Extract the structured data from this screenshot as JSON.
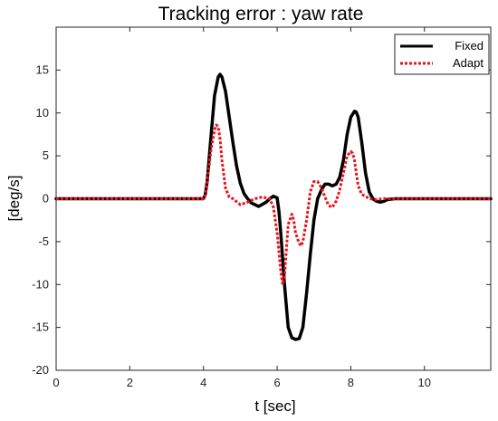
{
  "chart_data": {
    "type": "line",
    "title": "Tracking error : yaw rate",
    "xlabel": "t [sec]",
    "ylabel": "[deg/s]",
    "xlim": [
      0,
      11.8
    ],
    "ylim": [
      -20,
      20
    ],
    "xticks": [
      0,
      2,
      4,
      6,
      8,
      10
    ],
    "yticks": [
      -20,
      -15,
      -10,
      -5,
      0,
      5,
      10,
      15
    ],
    "grid": false,
    "legend_position": "top-right",
    "series": [
      {
        "name": "Fixed",
        "color": "#000000",
        "style": "solid",
        "x": [
          0,
          3.9,
          4.0,
          4.05,
          4.1,
          4.2,
          4.3,
          4.4,
          4.45,
          4.5,
          4.6,
          4.7,
          4.8,
          4.9,
          5.0,
          5.1,
          5.2,
          5.3,
          5.5,
          5.7,
          5.8,
          5.9,
          6.0,
          6.05,
          6.1,
          6.2,
          6.3,
          6.4,
          6.5,
          6.6,
          6.7,
          6.8,
          6.9,
          7.0,
          7.1,
          7.2,
          7.3,
          7.4,
          7.5,
          7.6,
          7.7,
          7.8,
          7.9,
          8.0,
          8.1,
          8.15,
          8.2,
          8.3,
          8.4,
          8.5,
          8.6,
          8.7,
          8.8,
          8.9,
          9.0,
          9.2,
          11.8
        ],
        "y": [
          0,
          0,
          0,
          0.5,
          2,
          7,
          12,
          14.2,
          14.5,
          14.2,
          12.5,
          9.5,
          6.5,
          3.8,
          1.8,
          0.6,
          0,
          -0.5,
          -0.9,
          -0.4,
          0,
          0.3,
          0.1,
          -1.5,
          -4,
          -10,
          -15,
          -16.2,
          -16.4,
          -16.3,
          -15,
          -11,
          -6.5,
          -2.5,
          0,
          1,
          1.7,
          1.7,
          1.5,
          1.7,
          2.5,
          4.5,
          7.5,
          9.5,
          10.2,
          10.1,
          9.5,
          6.5,
          3,
          0.8,
          0,
          -0.3,
          -0.4,
          -0.3,
          -0.1,
          0,
          0
        ]
      },
      {
        "name": "Adapt",
        "color": "#e8141e",
        "style": "dotted",
        "x": [
          0,
          3.9,
          4.0,
          4.05,
          4.1,
          4.2,
          4.3,
          4.35,
          4.4,
          4.45,
          4.5,
          4.6,
          4.7,
          4.8,
          5.0,
          5.2,
          5.4,
          5.6,
          5.8,
          5.9,
          6.0,
          6.1,
          6.15,
          6.2,
          6.25,
          6.3,
          6.4,
          6.45,
          6.5,
          6.6,
          6.65,
          6.7,
          6.8,
          6.9,
          7.0,
          7.1,
          7.2,
          7.3,
          7.4,
          7.5,
          7.6,
          7.7,
          7.8,
          7.9,
          8.0,
          8.05,
          8.1,
          8.15,
          8.2,
          8.3,
          8.4,
          8.5,
          8.7,
          8.9,
          9.2,
          11.8
        ],
        "y": [
          0,
          0,
          0,
          0.5,
          2,
          5.5,
          8,
          8.6,
          8.4,
          7,
          4.5,
          1.2,
          0.2,
          0,
          -0.7,
          -0.4,
          0,
          0.2,
          0,
          -1,
          -4,
          -8.5,
          -10,
          -9,
          -6,
          -3,
          -1.8,
          -2.5,
          -4,
          -5.2,
          -5.5,
          -5,
          -2.5,
          0.8,
          2,
          2,
          1.3,
          0.2,
          -0.8,
          -1,
          -0.3,
          1,
          3,
          5,
          5.5,
          5.3,
          4.5,
          3,
          1.5,
          0.5,
          0.3,
          0,
          -0.1,
          0,
          0,
          0
        ]
      }
    ]
  }
}
